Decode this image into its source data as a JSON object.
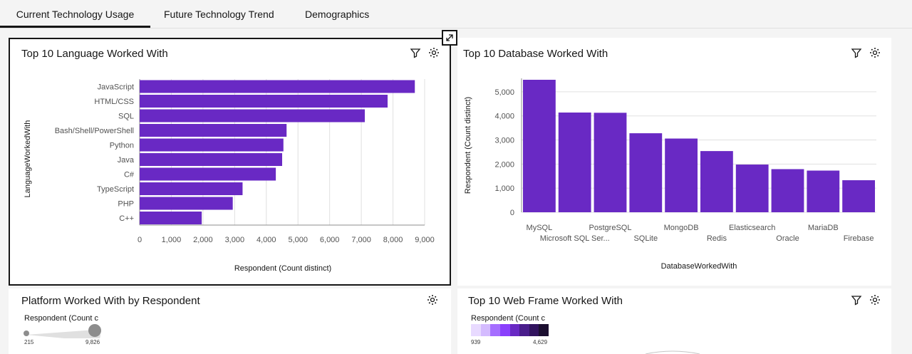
{
  "tabs": [
    {
      "label": "Current Technology Usage"
    },
    {
      "label": "Future Technology Trend"
    },
    {
      "label": "Demographics"
    }
  ],
  "cards": {
    "languages": {
      "title": "Top 10 Language Worked With"
    },
    "databases": {
      "title": "Top 10 Database Worked With"
    },
    "platform": {
      "title": "Platform Worked With by Respondent",
      "legend_title": "Respondent (Count c",
      "legend_min": "215",
      "legend_max": "9,826"
    },
    "webframe": {
      "title": "Top 10 Web Frame Worked With",
      "legend_title": "Respondent (Count c",
      "legend_min": "939",
      "legend_max": "4,629",
      "legend_colors": [
        "#e8daff",
        "#d4bbff",
        "#a56eff",
        "#8a3ffc",
        "#6929c4",
        "#491d8b",
        "#31135e",
        "#1c0f30"
      ]
    }
  },
  "icons": {
    "filter": "filter-icon",
    "settings": "settings-icon",
    "expand": "expand-icon"
  },
  "colors": {
    "bar": "#6929c4",
    "grid": "#e0e0e0",
    "axis": "#8d8d8d"
  },
  "chart_data": [
    {
      "type": "bar",
      "orientation": "horizontal",
      "title": "Top 10 Language Worked With",
      "categories": [
        "JavaScript",
        "HTML/CSS",
        "SQL",
        "Bash/Shell/PowerShell",
        "Python",
        "Java",
        "C#",
        "TypeScript",
        "PHP",
        "C++"
      ],
      "values": [
        8690,
        7830,
        7110,
        4640,
        4540,
        4500,
        4300,
        3250,
        2940,
        1960
      ],
      "xlabel": "Respondent (Count distinct)",
      "ylabel": "LanguageWorkedWith",
      "xlim": [
        0,
        9000
      ],
      "ticks": [
        "0",
        "1,000",
        "2,000",
        "3,000",
        "4,000",
        "5,000",
        "6,000",
        "7,000",
        "8,000",
        "9,000"
      ],
      "grid": true
    },
    {
      "type": "bar",
      "orientation": "vertical",
      "title": "Top 10 Database Worked With",
      "categories": [
        "MySQL",
        "Microsoft SQL Ser...",
        "PostgreSQL",
        "SQLite",
        "MongoDB",
        "Redis",
        "Elasticsearch",
        "Oracle",
        "MariaDB",
        "Firebase"
      ],
      "values": [
        5500,
        4140,
        4130,
        3280,
        3060,
        2540,
        1980,
        1790,
        1730,
        1330
      ],
      "xlabel": "DatabaseWorkedWith",
      "ylabel": "Respondent (Count distinct)",
      "ylim": [
        0,
        5500
      ],
      "ticks": [
        "0",
        "1,000",
        "2,000",
        "3,000",
        "4,000",
        "5,000"
      ],
      "grid": true
    }
  ]
}
